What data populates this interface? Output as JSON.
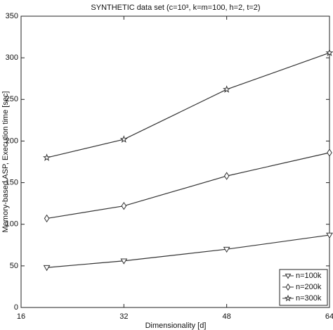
{
  "chart_data": {
    "type": "line",
    "title": "SYNTHETIC data set (c=10³, k=m=100, h=2, t=2)",
    "x_label": "Dimensionality [d]",
    "y_label": "Memory-based ASP, Execution time [sec]",
    "x": [
      20,
      32,
      48,
      64
    ],
    "series": [
      {
        "name": "n=100k",
        "color": "#333333",
        "marker": "triangle-down",
        "values": [
          48,
          56,
          70,
          87
        ]
      },
      {
        "name": "n=200k",
        "color": "#333333",
        "marker": "diamond",
        "values": [
          107,
          122,
          158,
          186
        ]
      },
      {
        "name": "n=300k",
        "color": "#333333",
        "marker": "star",
        "values": [
          180,
          202,
          262,
          306
        ]
      }
    ],
    "xlim": [
      16,
      64
    ],
    "xticks": [
      16,
      32,
      48,
      64
    ],
    "ylim": [
      0,
      350
    ],
    "yticks": [
      0,
      50,
      100,
      150,
      200,
      250,
      300,
      350
    ],
    "legend": "lower right",
    "grid": false
  }
}
